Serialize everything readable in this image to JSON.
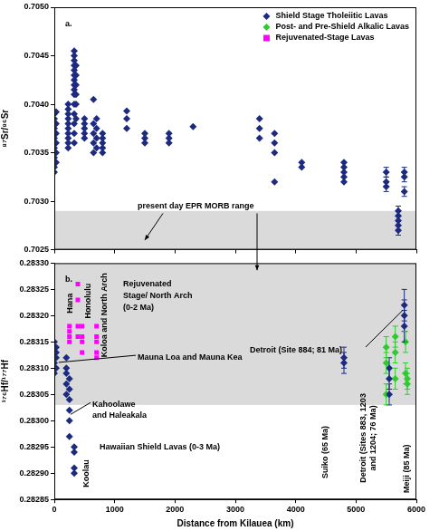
{
  "chart_data": [
    {
      "type": "scatter",
      "ylabel": "⁸⁷Sr/⁸⁶Sr",
      "xlim": [
        0,
        6000
      ],
      "xticks": [
        0,
        1000,
        2000,
        3000,
        4000,
        5000,
        6000
      ],
      "ylim": [
        0.7025,
        0.705
      ],
      "yticks": [
        0.7025,
        {
          "value": 0.703,
          "label": "0.7030"
        },
        0.7035,
        {
          "value": 0.704,
          "label": "0.7040"
        },
        0.7045,
        {
          "value": 0.705,
          "label": "0.7050"
        }
      ],
      "grid": false,
      "tick_labels": "y",
      "legend": "upper right",
      "bands": [
        {
          "ylim": [
            0.7025,
            0.7029
          ]
        }
      ],
      "annotations": [
        "a.",
        "present day EPR MORB range"
      ],
      "series": [
        {
          "name": "Shield Stage Tholeiitic Lavas",
          "color": "#1c2a80",
          "marker": "diamond",
          "x": [
            0,
            0,
            0,
            0,
            0,
            0,
            0,
            0,
            0,
            0,
            0,
            0,
            0,
            30,
            30,
            30,
            30,
            30,
            30,
            230,
            230,
            230,
            230,
            230,
            230,
            230,
            230,
            230,
            230,
            330,
            330,
            330,
            330,
            330,
            330,
            330,
            330,
            330,
            330,
            330,
            330,
            330,
            330,
            330,
            360,
            360,
            360,
            360,
            360,
            360,
            500,
            500,
            500,
            500,
            500,
            650,
            650,
            650,
            650,
            650,
            700,
            700,
            700,
            700,
            800,
            800,
            800,
            800,
            800,
            1200,
            1200,
            1200,
            1500,
            1500,
            1500,
            1900,
            1900,
            1900,
            2300,
            3400,
            3400,
            3400,
            3650,
            3650,
            3650,
            3650,
            4100,
            4100,
            4800,
            4800,
            4800,
            4800,
            4800,
            5500,
            5500,
            5500,
            5700,
            5700,
            5700,
            5700,
            5700,
            5800,
            5800,
            5800
          ],
          "values": [
            0.7033,
            0.70335,
            0.7034,
            0.70345,
            0.7035,
            0.70355,
            0.7036,
            0.70365,
            0.7037,
            0.70375,
            0.7038,
            0.70385,
            0.7039,
            0.7034,
            0.7035,
            0.7036,
            0.7037,
            0.7038,
            0.70392,
            0.70355,
            0.7036,
            0.70365,
            0.7037,
            0.70375,
            0.7038,
            0.70385,
            0.7039,
            0.70395,
            0.704,
            0.7036,
            0.7037,
            0.7038,
            0.7039,
            0.704,
            0.7041,
            0.70415,
            0.7042,
            0.70425,
            0.7043,
            0.70435,
            0.7044,
            0.70445,
            0.7045,
            0.70455,
            0.70385,
            0.704,
            0.7041,
            0.7042,
            0.7043,
            0.7044,
            0.70365,
            0.7037,
            0.70375,
            0.7038,
            0.70385,
            0.7035,
            0.7036,
            0.7037,
            0.7038,
            0.70405,
            0.70355,
            0.70365,
            0.70375,
            0.70385,
            0.7035,
            0.70355,
            0.7036,
            0.70365,
            0.7037,
            0.70375,
            0.70385,
            0.70393,
            0.7036,
            0.70365,
            0.7037,
            0.7036,
            0.70365,
            0.7037,
            0.70377,
            0.70365,
            0.70375,
            0.70385,
            0.7032,
            0.7035,
            0.7036,
            0.7037,
            0.70335,
            0.7034,
            0.7032,
            0.70325,
            0.7033,
            0.70335,
            0.7034,
            0.70315,
            0.7032,
            0.7033,
            0.7027,
            0.70275,
            0.7028,
            0.70285,
            0.7029,
            0.7031,
            0.70325,
            0.7033
          ],
          "errors": [
            null,
            null,
            null,
            null,
            null,
            null,
            null,
            null,
            null,
            null,
            null,
            null,
            null,
            null,
            null,
            null,
            null,
            null,
            null,
            null,
            null,
            null,
            null,
            null,
            null,
            null,
            null,
            null,
            null,
            null,
            null,
            null,
            null,
            null,
            null,
            null,
            null,
            null,
            null,
            null,
            null,
            null,
            null,
            null,
            null,
            null,
            null,
            null,
            null,
            null,
            null,
            null,
            null,
            null,
            null,
            null,
            null,
            null,
            null,
            null,
            null,
            null,
            null,
            null,
            null,
            null,
            null,
            null,
            null,
            null,
            null,
            null,
            null,
            null,
            null,
            null,
            null,
            null,
            null,
            null,
            null,
            null,
            null,
            null,
            null,
            null,
            null,
            null,
            null,
            null,
            null,
            null,
            null,
            5e-05,
            5e-05,
            5e-05,
            5e-05,
            5e-05,
            5e-05,
            5e-05,
            5e-05,
            5e-05,
            5e-05,
            5e-05
          ]
        },
        {
          "name": "Post- and Pre-Shield Alkalic Lavas",
          "color": "#2ecc2e",
          "marker": "diamond",
          "x": [],
          "values": []
        },
        {
          "name": "Rejuvenated-Stage Lavas",
          "color": "#ff00ff",
          "marker": "square",
          "x": [],
          "values": []
        }
      ]
    },
    {
      "type": "scatter",
      "xlabel": "Distance from Kilauea (km)",
      "ylabel": "¹⁷⁶Hf/¹⁷⁷Hf",
      "xlim": [
        0,
        6000
      ],
      "xticks": [
        0,
        1000,
        2000,
        3000,
        4000,
        5000,
        6000
      ],
      "ylim": [
        0.28285,
        0.2833
      ],
      "yticks": [
        0.28285,
        {
          "value": 0.2829,
          "label": "0.28290"
        },
        0.28295,
        {
          "value": 0.283,
          "label": "0.28300"
        },
        0.28305,
        {
          "value": 0.2831,
          "label": "0.28310"
        },
        0.28315,
        {
          "value": 0.2832,
          "label": "0.28320"
        },
        0.28325,
        {
          "value": 0.2833,
          "label": "0.28330"
        }
      ],
      "grid": false,
      "bands": [
        {
          "ylim": [
            0.28303,
            0.2833
          ]
        }
      ],
      "annotations": [
        "b.",
        [
          "Rejuvenated",
          "Stage/ North Arch",
          "(0-2 Ma)"
        ],
        "Hana",
        "Honolulu",
        "Koloa and North Arch",
        "Mauna Loa and Mauna Kea",
        [
          "Kahoolawe",
          "and Haleakala"
        ],
        "Koolau",
        "Hawaiian Shield Lavas (0-3 Ma)",
        "Detroit (Site 884; 81 Ma)",
        "Suiko (65 Ma)",
        [
          "Detroit (Sites 883, 1203",
          "and 1204; 76 Ma)"
        ],
        "Meiji (85 Ma)"
      ],
      "series": [
        {
          "name": "Shield Stage Tholeiitic Lavas",
          "color": "#1c2a80",
          "marker": "diamond",
          "x": [
            0,
            0,
            0,
            0,
            0,
            0,
            0,
            30,
            30,
            30,
            30,
            200,
            200,
            200,
            200,
            200,
            250,
            250,
            250,
            250,
            250,
            250,
            330,
            330,
            330,
            330,
            4800,
            4800,
            5550,
            5550,
            5550,
            5800,
            5800,
            5800
          ],
          "values": [
            0.28309,
            0.2831,
            0.28311,
            0.28312,
            0.28313,
            0.28314,
            0.28315,
            0.2831,
            0.28312,
            0.28313,
            0.28314,
            0.28305,
            0.28307,
            0.28309,
            0.2831,
            0.28312,
            0.28297,
            0.283,
            0.28302,
            0.28304,
            0.28306,
            0.28308,
            0.2829,
            0.28291,
            0.28294,
            0.28295,
            0.28311,
            0.28312,
            0.28305,
            0.28308,
            0.2831,
            0.28318,
            0.2832,
            0.28322
          ],
          "errors": [
            null,
            null,
            null,
            null,
            null,
            null,
            null,
            null,
            null,
            null,
            null,
            null,
            null,
            null,
            null,
            null,
            null,
            null,
            null,
            null,
            null,
            null,
            null,
            null,
            null,
            null,
            2e-05,
            2e-05,
            2e-05,
            2e-05,
            2e-05,
            3e-05,
            3e-05,
            3e-05
          ]
        },
        {
          "name": "Post- and Pre-Shield Alkalic Lavas",
          "color": "#2ecc2e",
          "marker": "diamond",
          "x": [
            5500,
            5500,
            5500,
            5650,
            5650,
            5650,
            5820,
            5820,
            5850,
            5850
          ],
          "values": [
            0.28305,
            0.28311,
            0.28314,
            0.28308,
            0.28313,
            0.28316,
            0.28309,
            0.28315,
            0.28307,
            0.28308
          ],
          "errors": [
            2e-05,
            2e-05,
            2e-05,
            2e-05,
            2e-05,
            2e-05,
            2e-05,
            2e-05,
            2e-05,
            2e-05
          ]
        },
        {
          "name": "Rejuvenated-Stage Lavas",
          "color": "#ff00ff",
          "marker": "square",
          "x": [
            250,
            250,
            250,
            250,
            390,
            390,
            390,
            390,
            460,
            460,
            460,
            460,
            700,
            700,
            700,
            700,
            700
          ],
          "values": [
            0.28315,
            0.28316,
            0.28317,
            0.28318,
            0.28316,
            0.28318,
            0.28323,
            0.28326,
            0.28313,
            0.28315,
            0.28316,
            0.28318,
            0.28312,
            0.28313,
            0.28315,
            0.28316,
            0.28318
          ]
        }
      ]
    }
  ]
}
